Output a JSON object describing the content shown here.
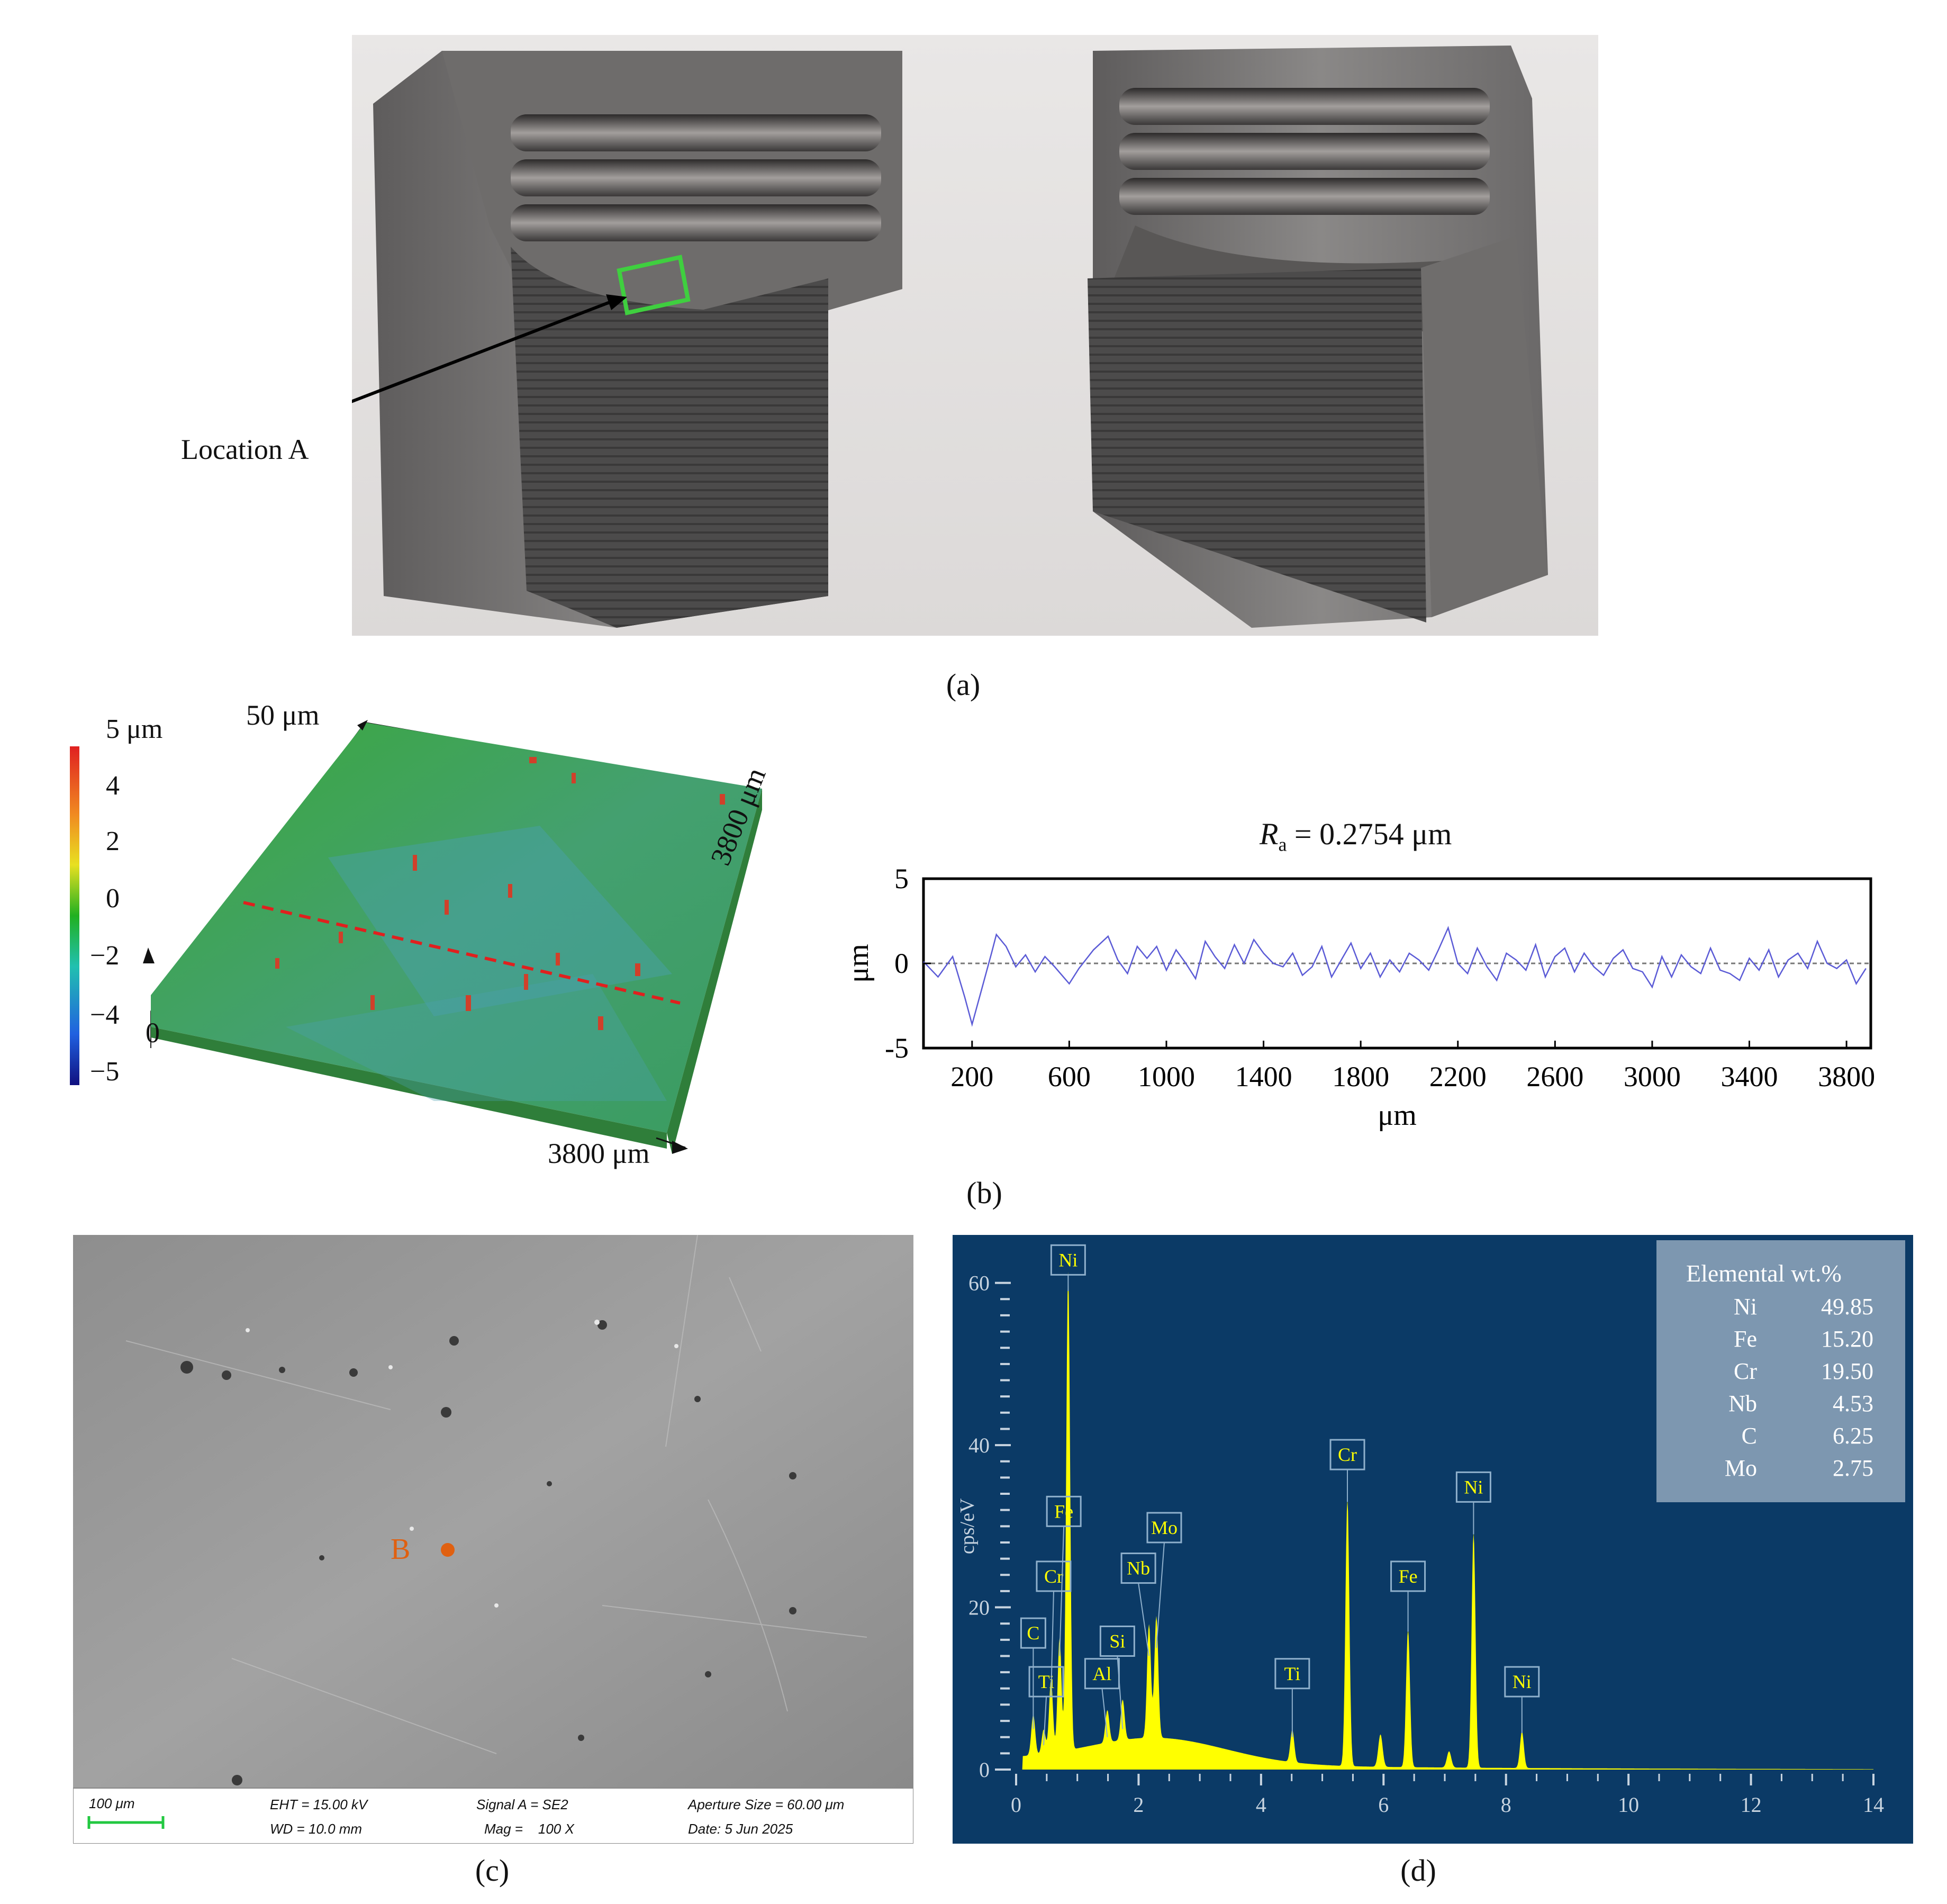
{
  "panel_a": {
    "label": "Location A",
    "caption": "(a)"
  },
  "panel_b": {
    "caption": "(b)",
    "topo": {
      "colorbar_ticks": [
        "5 μm",
        "4",
        "2",
        "0",
        "−2",
        "−4",
        "−5"
      ],
      "z_label": "50 μm",
      "y_label": "3800 μm",
      "x_label": "3800 μm",
      "origin": "0"
    },
    "profile_title_var": "R",
    "profile_title_sub": "a",
    "profile_title_rest": " = 0.2754 μm"
  },
  "panel_c": {
    "caption": "(c)",
    "point_label": "B",
    "info": {
      "scale": "100 μm",
      "eht": "EHT = 15.00 kV",
      "wd": "WD = 10.0 mm",
      "signal": "Signal A = SE2",
      "mag": "Mag =    100 X",
      "aperture": "Aperture Size = 60.00 μm",
      "date": "Date: 5 Jun 2025"
    }
  },
  "panel_d": {
    "caption": "(d)",
    "table_title": "Elemental wt.%",
    "table": [
      {
        "el": "Ni",
        "val": "49.85"
      },
      {
        "el": "Fe",
        "val": "15.20"
      },
      {
        "el": "Cr",
        "val": "19.50"
      },
      {
        "el": "Nb",
        "val": "4.53"
      },
      {
        "el": "C",
        "val": "6.25"
      },
      {
        "el": "Mo",
        "val": "2.75"
      }
    ]
  },
  "colors": {
    "eds_bg": "#0b3a66",
    "eds_spectrum": "#ffff00",
    "profile_line": "#5b5bd6",
    "dashed_red": "#e0201e",
    "point_b": "#e06010"
  },
  "chart_data": [
    {
      "type": "line",
      "title": "Ra = 0.2754 μm",
      "xlabel": "μm",
      "ylabel": "μm",
      "xlim": [
        0,
        3900
      ],
      "ylim": [
        -5,
        5
      ],
      "xticks": [
        200,
        600,
        1000,
        1400,
        1800,
        2200,
        2600,
        3000,
        3400,
        3800
      ],
      "yticks": [
        5,
        0,
        -5
      ],
      "series": [
        {
          "x": [
            0,
            60,
            120,
            170,
            200,
            240,
            280,
            300,
            340,
            380,
            420,
            460,
            500,
            540,
            600,
            640,
            700,
            760,
            800,
            840,
            880,
            920,
            960,
            1000,
            1040,
            1080,
            1120,
            1160,
            1200,
            1240,
            1280,
            1320,
            1360,
            1400,
            1440,
            1480,
            1520,
            1560,
            1600,
            1640,
            1680,
            1720,
            1760,
            1800,
            1840,
            1880,
            1920,
            1960,
            2000,
            2040,
            2080,
            2120,
            2160,
            2200,
            2240,
            2280,
            2320,
            2360,
            2400,
            2440,
            2480,
            2520,
            2560,
            2600,
            2640,
            2680,
            2720,
            2760,
            2800,
            2840,
            2880,
            2920,
            2960,
            3000,
            3040,
            3080,
            3120,
            3160,
            3200,
            3240,
            3280,
            3320,
            3360,
            3400,
            3440,
            3480,
            3520,
            3560,
            3600,
            3640,
            3680,
            3720,
            3760,
            3800,
            3840,
            3880
          ],
          "y": [
            0.1,
            -0.8,
            0.4,
            -2.0,
            -3.6,
            -1.5,
            0.6,
            1.7,
            1.0,
            -0.2,
            0.5,
            -0.5,
            0.4,
            -0.2,
            -1.2,
            -0.3,
            0.8,
            1.6,
            0.2,
            -0.6,
            1.0,
            0.3,
            1.0,
            -0.4,
            0.8,
            0.0,
            -0.9,
            1.3,
            0.4,
            -0.3,
            1.1,
            0.0,
            1.4,
            0.6,
            0.0,
            -0.2,
            0.6,
            -0.7,
            -0.2,
            1.0,
            -0.8,
            0.2,
            1.2,
            -0.3,
            0.6,
            -0.8,
            0.2,
            -0.5,
            0.6,
            0.2,
            -0.4,
            0.8,
            2.1,
            0.0,
            -0.6,
            0.9,
            -0.2,
            -1.0,
            0.6,
            0.2,
            -0.4,
            1.1,
            -0.8,
            0.4,
            0.9,
            -0.5,
            0.6,
            -0.2,
            -0.7,
            0.3,
            0.8,
            -0.3,
            -0.5,
            -1.4,
            0.4,
            -0.8,
            0.5,
            -0.2,
            -0.6,
            0.9,
            -0.4,
            -0.6,
            -1.0,
            0.3,
            -0.4,
            0.8,
            -0.8,
            0.2,
            0.6,
            -0.3,
            1.3,
            0.0,
            -0.3,
            0.2,
            -1.2,
            -0.3
          ]
        }
      ]
    },
    {
      "type": "area",
      "xlabel": "",
      "ylabel": "cps/eV",
      "xlim": [
        0,
        14
      ],
      "ylim": [
        0,
        62
      ],
      "xticks": [
        0,
        2,
        4,
        6,
        8,
        10,
        12,
        14
      ],
      "yticks": [
        0,
        20,
        40,
        60
      ],
      "peaks": [
        {
          "label": "C",
          "x": 0.28,
          "y": 5
        },
        {
          "label": "Ti",
          "x": 0.45,
          "y": 3
        },
        {
          "label": "Cr",
          "x": 0.57,
          "y": 9
        },
        {
          "label": "Fe",
          "x": 0.71,
          "y": 14
        },
        {
          "label": "Ni",
          "x": 0.85,
          "y": 59
        },
        {
          "label": "Al",
          "x": 1.49,
          "y": 4
        },
        {
          "label": "Si",
          "x": 1.74,
          "y": 5
        },
        {
          "label": "Nb",
          "x": 2.17,
          "y": 14
        },
        {
          "label": "Mo",
          "x": 2.29,
          "y": 15
        },
        {
          "label": "Ti",
          "x": 4.51,
          "y": 4
        },
        {
          "label": "Cr",
          "x": 5.41,
          "y": 33
        },
        {
          "label": "Fe",
          "x": 6.4,
          "y": 17
        },
        {
          "label": "Ni",
          "x": 7.47,
          "y": 29
        },
        {
          "label": "Ni",
          "x": 8.26,
          "y": 4.5
        }
      ]
    }
  ]
}
